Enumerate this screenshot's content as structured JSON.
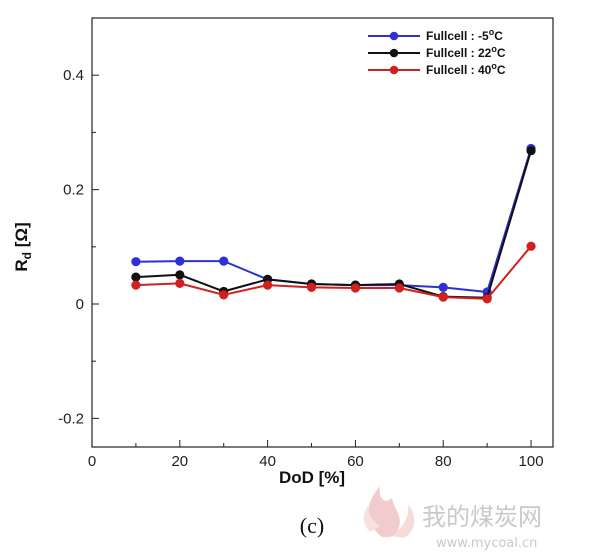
{
  "chart_data": {
    "type": "line",
    "title": "",
    "xlabel": "DoD [%]",
    "ylabel_main": "R",
    "ylabel_sub": "d",
    "ylabel_unit": " [Ω]",
    "xlim": [
      0,
      105
    ],
    "ylim": [
      -0.25,
      0.5
    ],
    "xticks": [
      0,
      20,
      40,
      60,
      80,
      100
    ],
    "yticks": [
      -0.2,
      0,
      0.2,
      0.4
    ],
    "ytick_labels": [
      "-0.2",
      "0",
      "0.2",
      "0.4"
    ],
    "grid": false,
    "legend_position": "top-right",
    "x": [
      10,
      20,
      30,
      40,
      50,
      60,
      70,
      80,
      90,
      100
    ],
    "series": [
      {
        "name": "Fullcell : -5",
        "unit_sup": "o",
        "unit": "C",
        "color": "#2f2fd8",
        "values": [
          0.074,
          0.075,
          0.075,
          0.043,
          0.035,
          0.033,
          0.033,
          0.029,
          0.021,
          0.272
        ]
      },
      {
        "name": "Fullcell : 22",
        "unit_sup": "o",
        "unit": "C",
        "color": "#111111",
        "values": [
          0.047,
          0.051,
          0.022,
          0.043,
          0.035,
          0.033,
          0.035,
          0.013,
          0.011,
          0.268
        ]
      },
      {
        "name": "Fullcell : 40",
        "unit_sup": "o",
        "unit": "C",
        "color": "#d21f1f",
        "values": [
          0.033,
          0.036,
          0.016,
          0.033,
          0.029,
          0.028,
          0.028,
          0.012,
          0.009,
          0.101
        ]
      }
    ]
  },
  "caption": "(c)",
  "watermark": {
    "text": "我的煤炭网",
    "url": "www.mycoal.cn"
  }
}
